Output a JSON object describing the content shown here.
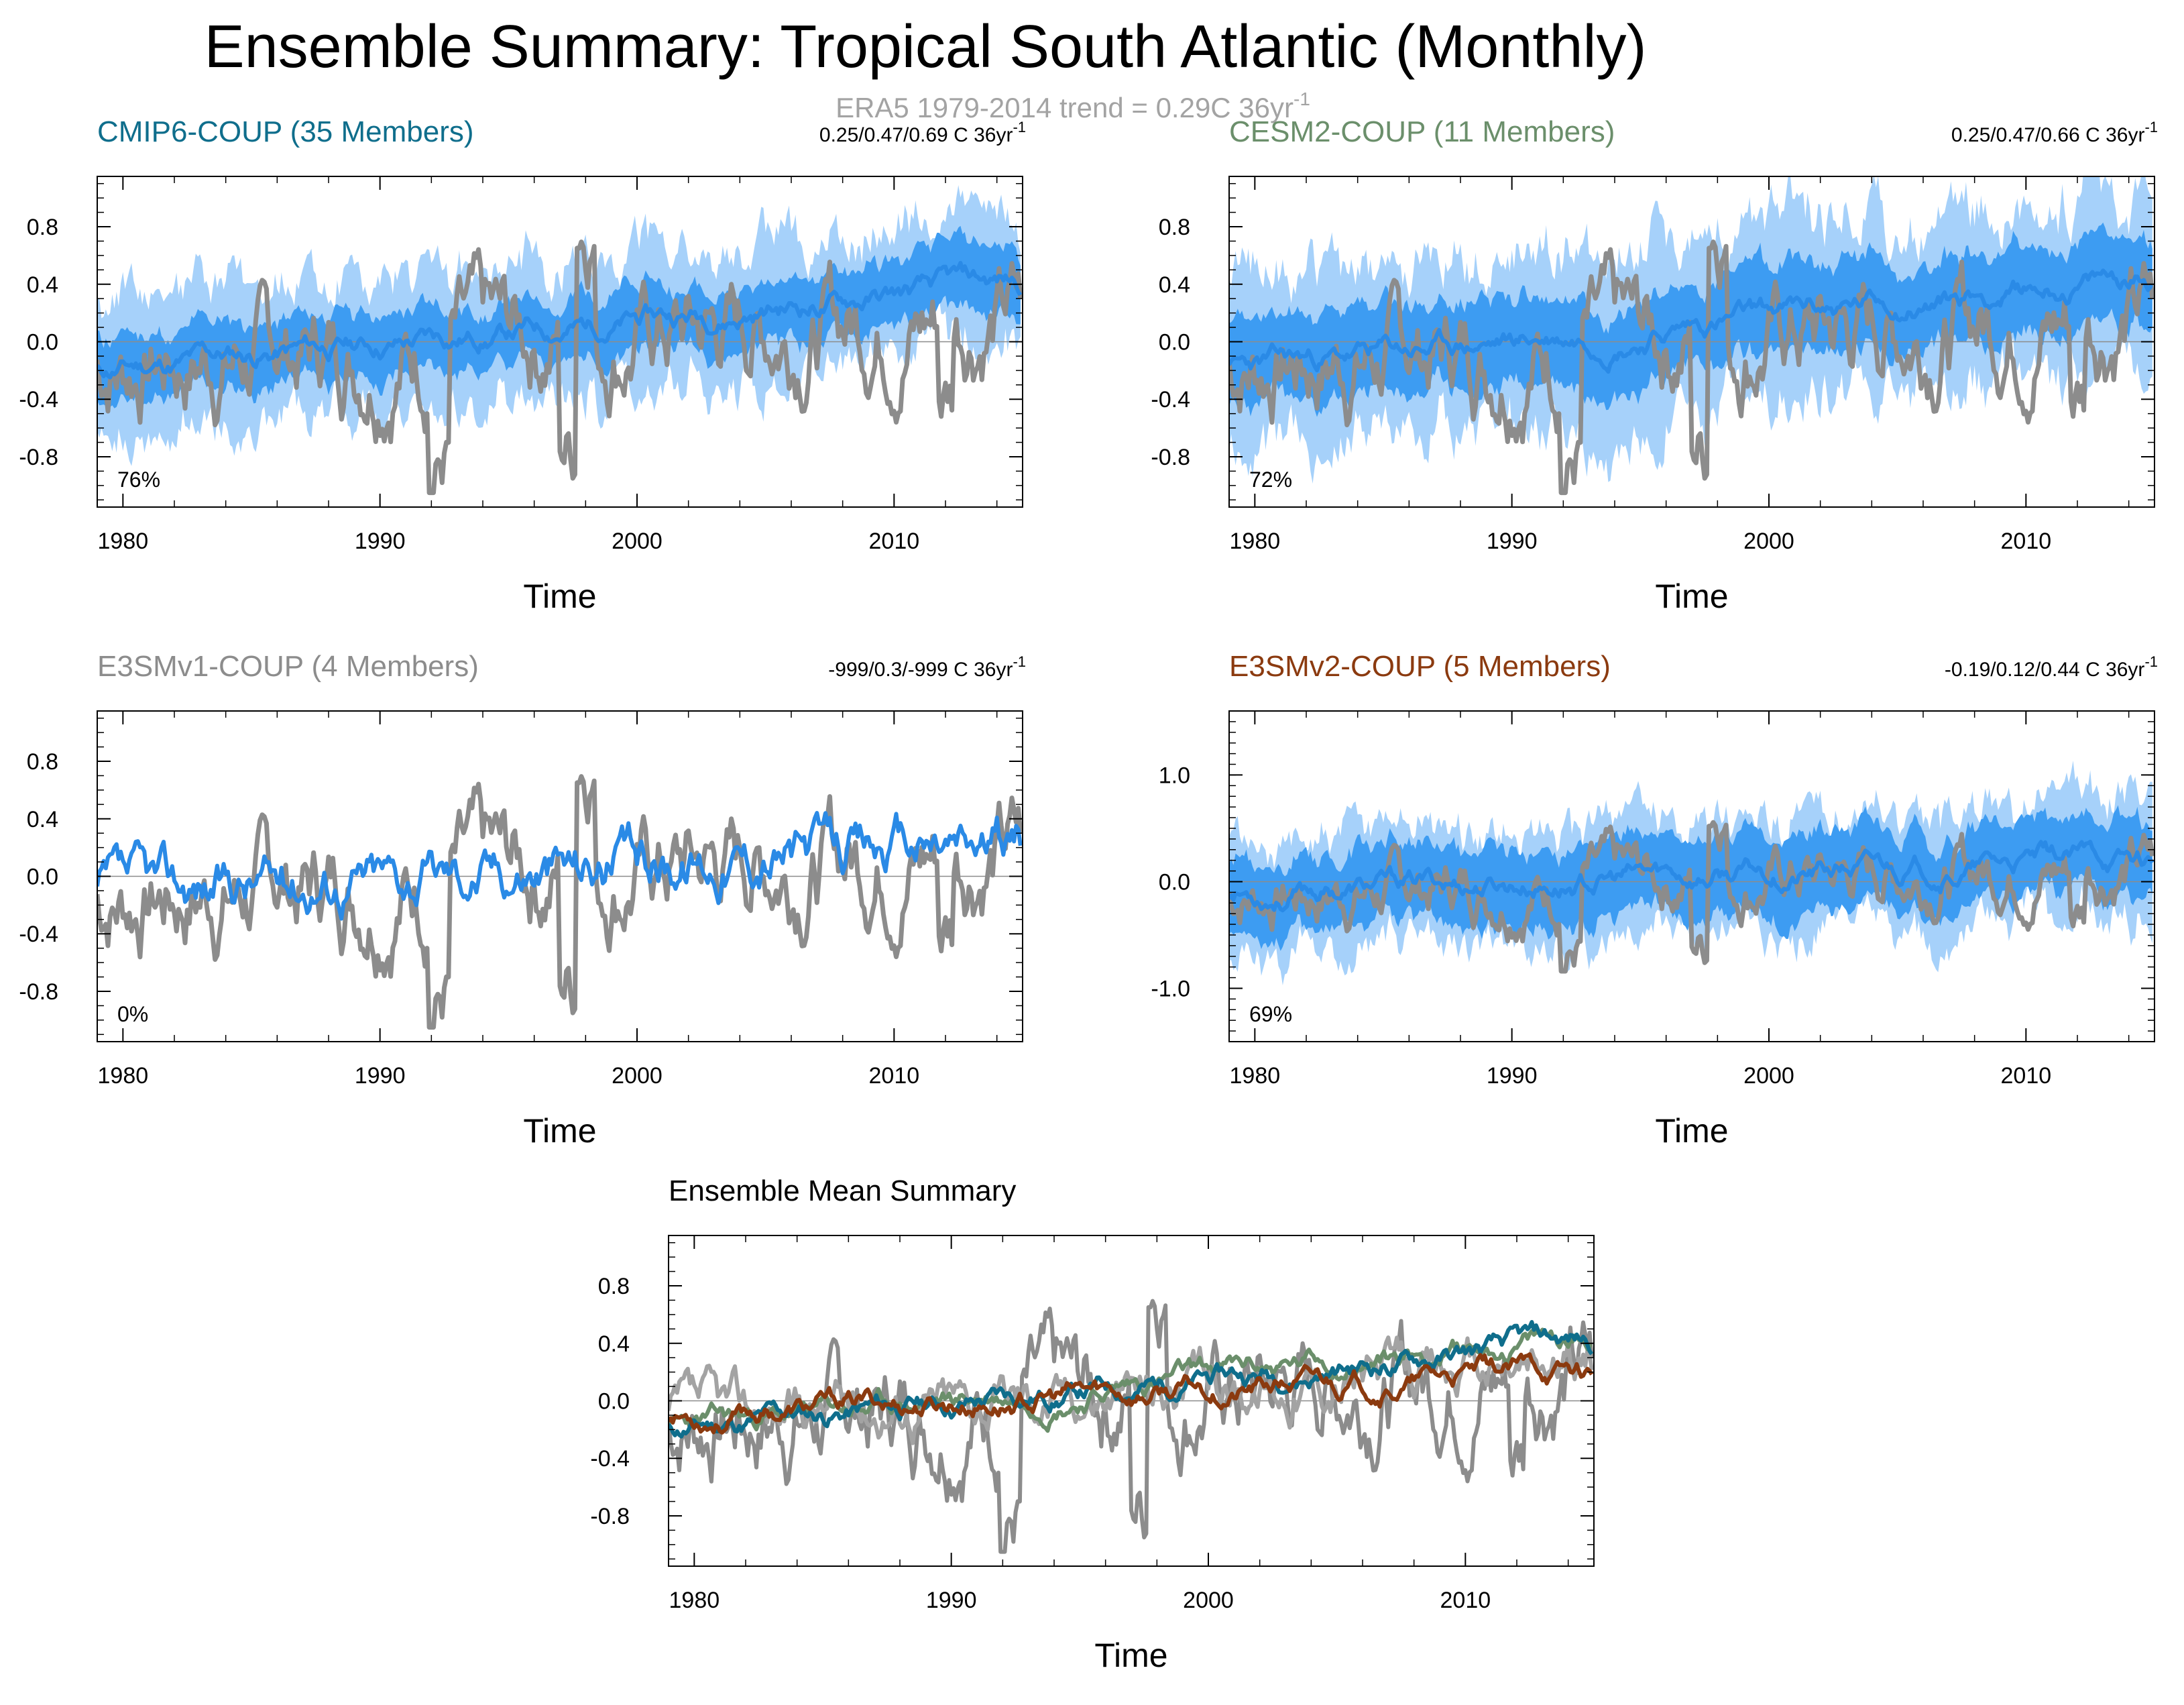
{
  "title": "Ensemble Summary: Tropical South Atlantic (Monthly)",
  "subtitle": {
    "text": "ERA5 1979-2014 trend = 0.29C 36yr",
    "sup": "-1"
  },
  "colors": {
    "cmip6": "#0f6e8c",
    "cesm2": "#6b8f6b",
    "e3smv1": "#8c8c8c",
    "e3smv2": "#8b3a0f",
    "obs": "#8c8c8c",
    "ens_line": "#2a8ae6",
    "band_outer": "#a6d1fa",
    "band_inner": "#3d9cf2"
  },
  "chart_data": [
    {
      "id": "cmip6",
      "type": "line",
      "title": "CMIP6-COUP (35 Members)",
      "title_color": "#0f6e8c",
      "right_text": "0.25/0.47/0.69 C 36yr",
      "right_sup": "-1",
      "percent": "76%",
      "xlabel": "Time",
      "xlim": [
        1979,
        2015
      ],
      "ylim": [
        -1.15,
        1.15
      ],
      "xticks": [
        1980,
        1990,
        2000,
        2010
      ],
      "yticks": [
        -0.8,
        -0.4,
        0.0,
        0.4,
        0.8
      ],
      "ytick_labels": [
        "-0.8",
        "-0.4",
        "0.0",
        "0.4",
        "0.8"
      ],
      "bands": true,
      "trend": [
        -0.2,
        0.4
      ],
      "inner_width": 0.22,
      "outer_width": 0.46,
      "seed": 11
    },
    {
      "id": "cesm2",
      "type": "line",
      "title": "CESM2-COUP (11 Members)",
      "title_color": "#6b8f6b",
      "right_text": "0.25/0.47/0.66 C 36yr",
      "right_sup": "-1",
      "percent": "72%",
      "xlabel": "Time",
      "xlim": [
        1979,
        2015
      ],
      "ylim": [
        -1.15,
        1.15
      ],
      "xticks": [
        1980,
        1990,
        2000,
        2010
      ],
      "yticks": [
        -0.8,
        -0.4,
        0.0,
        0.4,
        0.8
      ],
      "ytick_labels": [
        "-0.8",
        "-0.4",
        "0.0",
        "0.4",
        "0.8"
      ],
      "bands": true,
      "trend": [
        -0.2,
        0.45
      ],
      "inner_width": 0.3,
      "outer_width": 0.6,
      "seed": 23
    },
    {
      "id": "e3smv1",
      "type": "line",
      "title": "E3SMv1-COUP (4 Members)",
      "title_color": "#8c8c8c",
      "right_text": "-999/0.3/-999 C 36yr",
      "right_sup": "-1",
      "percent": "0%",
      "xlabel": "Time",
      "xlim": [
        1979,
        2015
      ],
      "ylim": [
        -1.15,
        1.15
      ],
      "xticks": [
        1980,
        1990,
        2000,
        2010
      ],
      "yticks": [
        -0.8,
        -0.4,
        0.0,
        0.4,
        0.8
      ],
      "ytick_labels": [
        "-0.8",
        "-0.4",
        "0.0",
        "0.4",
        "0.8"
      ],
      "bands": false,
      "trend": [
        -0.1,
        0.25
      ],
      "inner_width": 0,
      "outer_width": 0,
      "seed": 37
    },
    {
      "id": "e3smv2",
      "type": "line",
      "title": "E3SMv2-COUP (5 Members)",
      "title_color": "#8b3a0f",
      "right_text": "-0.19/0.12/0.44 C 36yr",
      "right_sup": "-1",
      "percent": "69%",
      "xlabel": "Time",
      "xlim": [
        1979,
        2015
      ],
      "ylim": [
        -1.5,
        1.6
      ],
      "xticks": [
        1980,
        1990,
        2000,
        2010
      ],
      "yticks": [
        -1.0,
        0.0,
        1.0
      ],
      "ytick_labels": [
        "-1.0",
        "0.0",
        "1.0"
      ],
      "bands": true,
      "trend": [
        -0.1,
        0.2
      ],
      "inner_width": 0.35,
      "outer_width": 0.55,
      "seed": 53
    },
    {
      "id": "mean",
      "type": "line",
      "title": "Ensemble Mean Summary",
      "title_color": "#000000",
      "right_text": "",
      "right_sup": "",
      "percent": "",
      "xlabel": "Time",
      "xlim": [
        1979,
        2015
      ],
      "ylim": [
        -1.15,
        1.15
      ],
      "xticks": [
        1980,
        1990,
        2000,
        2010
      ],
      "yticks": [
        -0.8,
        -0.4,
        0.0,
        0.4,
        0.8
      ],
      "ytick_labels": [
        "-0.8",
        "-0.4",
        "0.0",
        "0.4",
        "0.8"
      ],
      "bands": false,
      "series": [
        {
          "name": "ERA5",
          "color": "#8c8c8c",
          "seed": 7
        },
        {
          "name": "E3SMv1-COUP",
          "color": "#a3a3a3",
          "seed": 37
        },
        {
          "name": "CESM2-COUP",
          "color": "#6b8f6b",
          "seed": 23
        },
        {
          "name": "CMIP6-COUP",
          "color": "#0f6e8c",
          "seed": 11
        },
        {
          "name": "E3SMv2-COUP",
          "color": "#8b3a0f",
          "seed": 53
        }
      ]
    }
  ]
}
